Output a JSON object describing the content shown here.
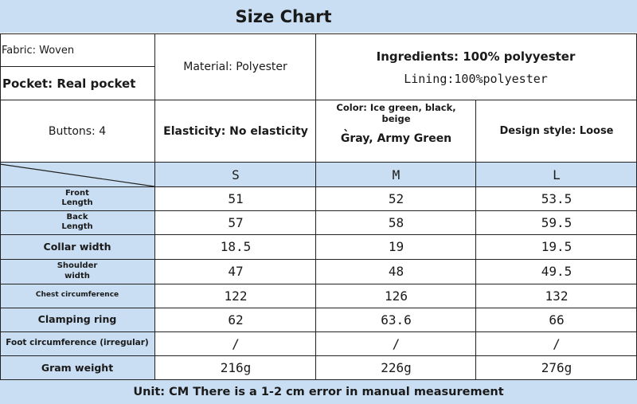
{
  "title": "Size Chart",
  "info": {
    "fabric": "Fabric: Woven",
    "pocket": "Pocket: Real pocket",
    "material": "Material: Polyester",
    "ingredients": "Ingredients: 100% polyyester",
    "lining": "Lining:100%polyester",
    "buttons": "Buttons: 4",
    "elasticity": "Elasticity: No elasticity",
    "color_line1": "Color: Ice green, black,",
    "color_line2": "beige",
    "color_mark": "、",
    "color_line3": "Gray, Army Green",
    "design": "Design style: Loose"
  },
  "sizes": [
    "S",
    "M",
    "L"
  ],
  "rows": [
    {
      "label": "Front\nLength",
      "values": [
        "51",
        "52",
        "53.5"
      ]
    },
    {
      "label": "Back\nLength",
      "values": [
        "57",
        "58",
        "59.5"
      ]
    },
    {
      "label": "Collar width",
      "values": [
        "18.5",
        "19",
        "19.5"
      ]
    },
    {
      "label": "Shoulder\nwidth",
      "values": [
        "47",
        "48",
        "49.5"
      ]
    },
    {
      "label": "Chest circumference",
      "values": [
        "122",
        "126",
        "132"
      ]
    },
    {
      "label": "Clamping ring",
      "values": [
        "62",
        "63.6",
        "66"
      ]
    },
    {
      "label": "Foot circumference (irregular)",
      "values": [
        "/",
        "/",
        "/"
      ]
    },
    {
      "label": "Gram weight",
      "values": [
        "216g",
        "226g",
        "276g"
      ]
    }
  ],
  "footer": "Unit: CM There is a 1-2 cm error in manual measurement",
  "colors": {
    "header_fill": "#c9def2",
    "grid": "#222222"
  }
}
